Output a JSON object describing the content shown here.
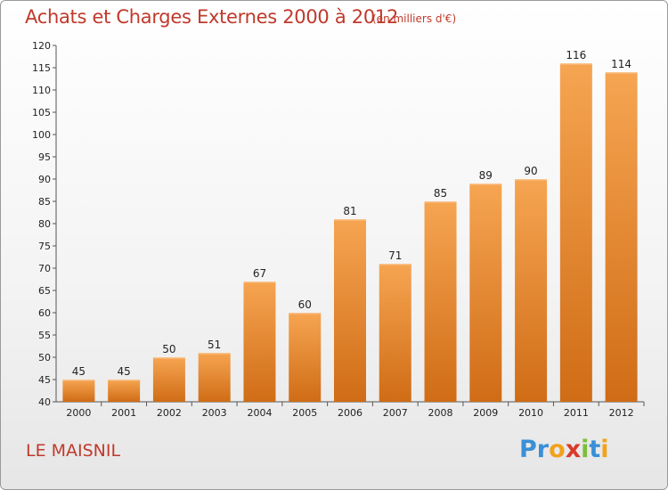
{
  "header": {
    "title": "Achats et Charges Externes 2000 à 2012",
    "unit": "(en milliers d'€)"
  },
  "footer": {
    "commune": "LE MAISNIL",
    "logo": {
      "letters": [
        "P",
        "r",
        "o",
        "x",
        "i",
        "t",
        "i"
      ],
      "colors": [
        "#3a8fd6",
        "#3a8fd6",
        "#f2a21b",
        "#d93b2a",
        "#7cbf3a",
        "#3a8fd6",
        "#f2a21b"
      ]
    }
  },
  "colors": {
    "bar_top": "#f6a552",
    "bar_bottom": "#d06c16",
    "text_accent": "#c0392b"
  },
  "chart_data": {
    "type": "bar",
    "title": "Achats et Charges Externes 2000 à 2012",
    "subtitle": "(en milliers d'€)",
    "xlabel": "",
    "ylabel": "",
    "categories": [
      "2000",
      "2001",
      "2002",
      "2003",
      "2004",
      "2005",
      "2006",
      "2007",
      "2008",
      "2009",
      "2010",
      "2011",
      "2012"
    ],
    "values": [
      45,
      45,
      50,
      51,
      67,
      60,
      81,
      71,
      85,
      89,
      90,
      116,
      114
    ],
    "ylim": [
      40,
      120
    ],
    "yticks": [
      40,
      45,
      50,
      55,
      60,
      65,
      70,
      75,
      80,
      85,
      90,
      95,
      100,
      105,
      110,
      115,
      120
    ],
    "grid": false,
    "data_labels": true
  }
}
